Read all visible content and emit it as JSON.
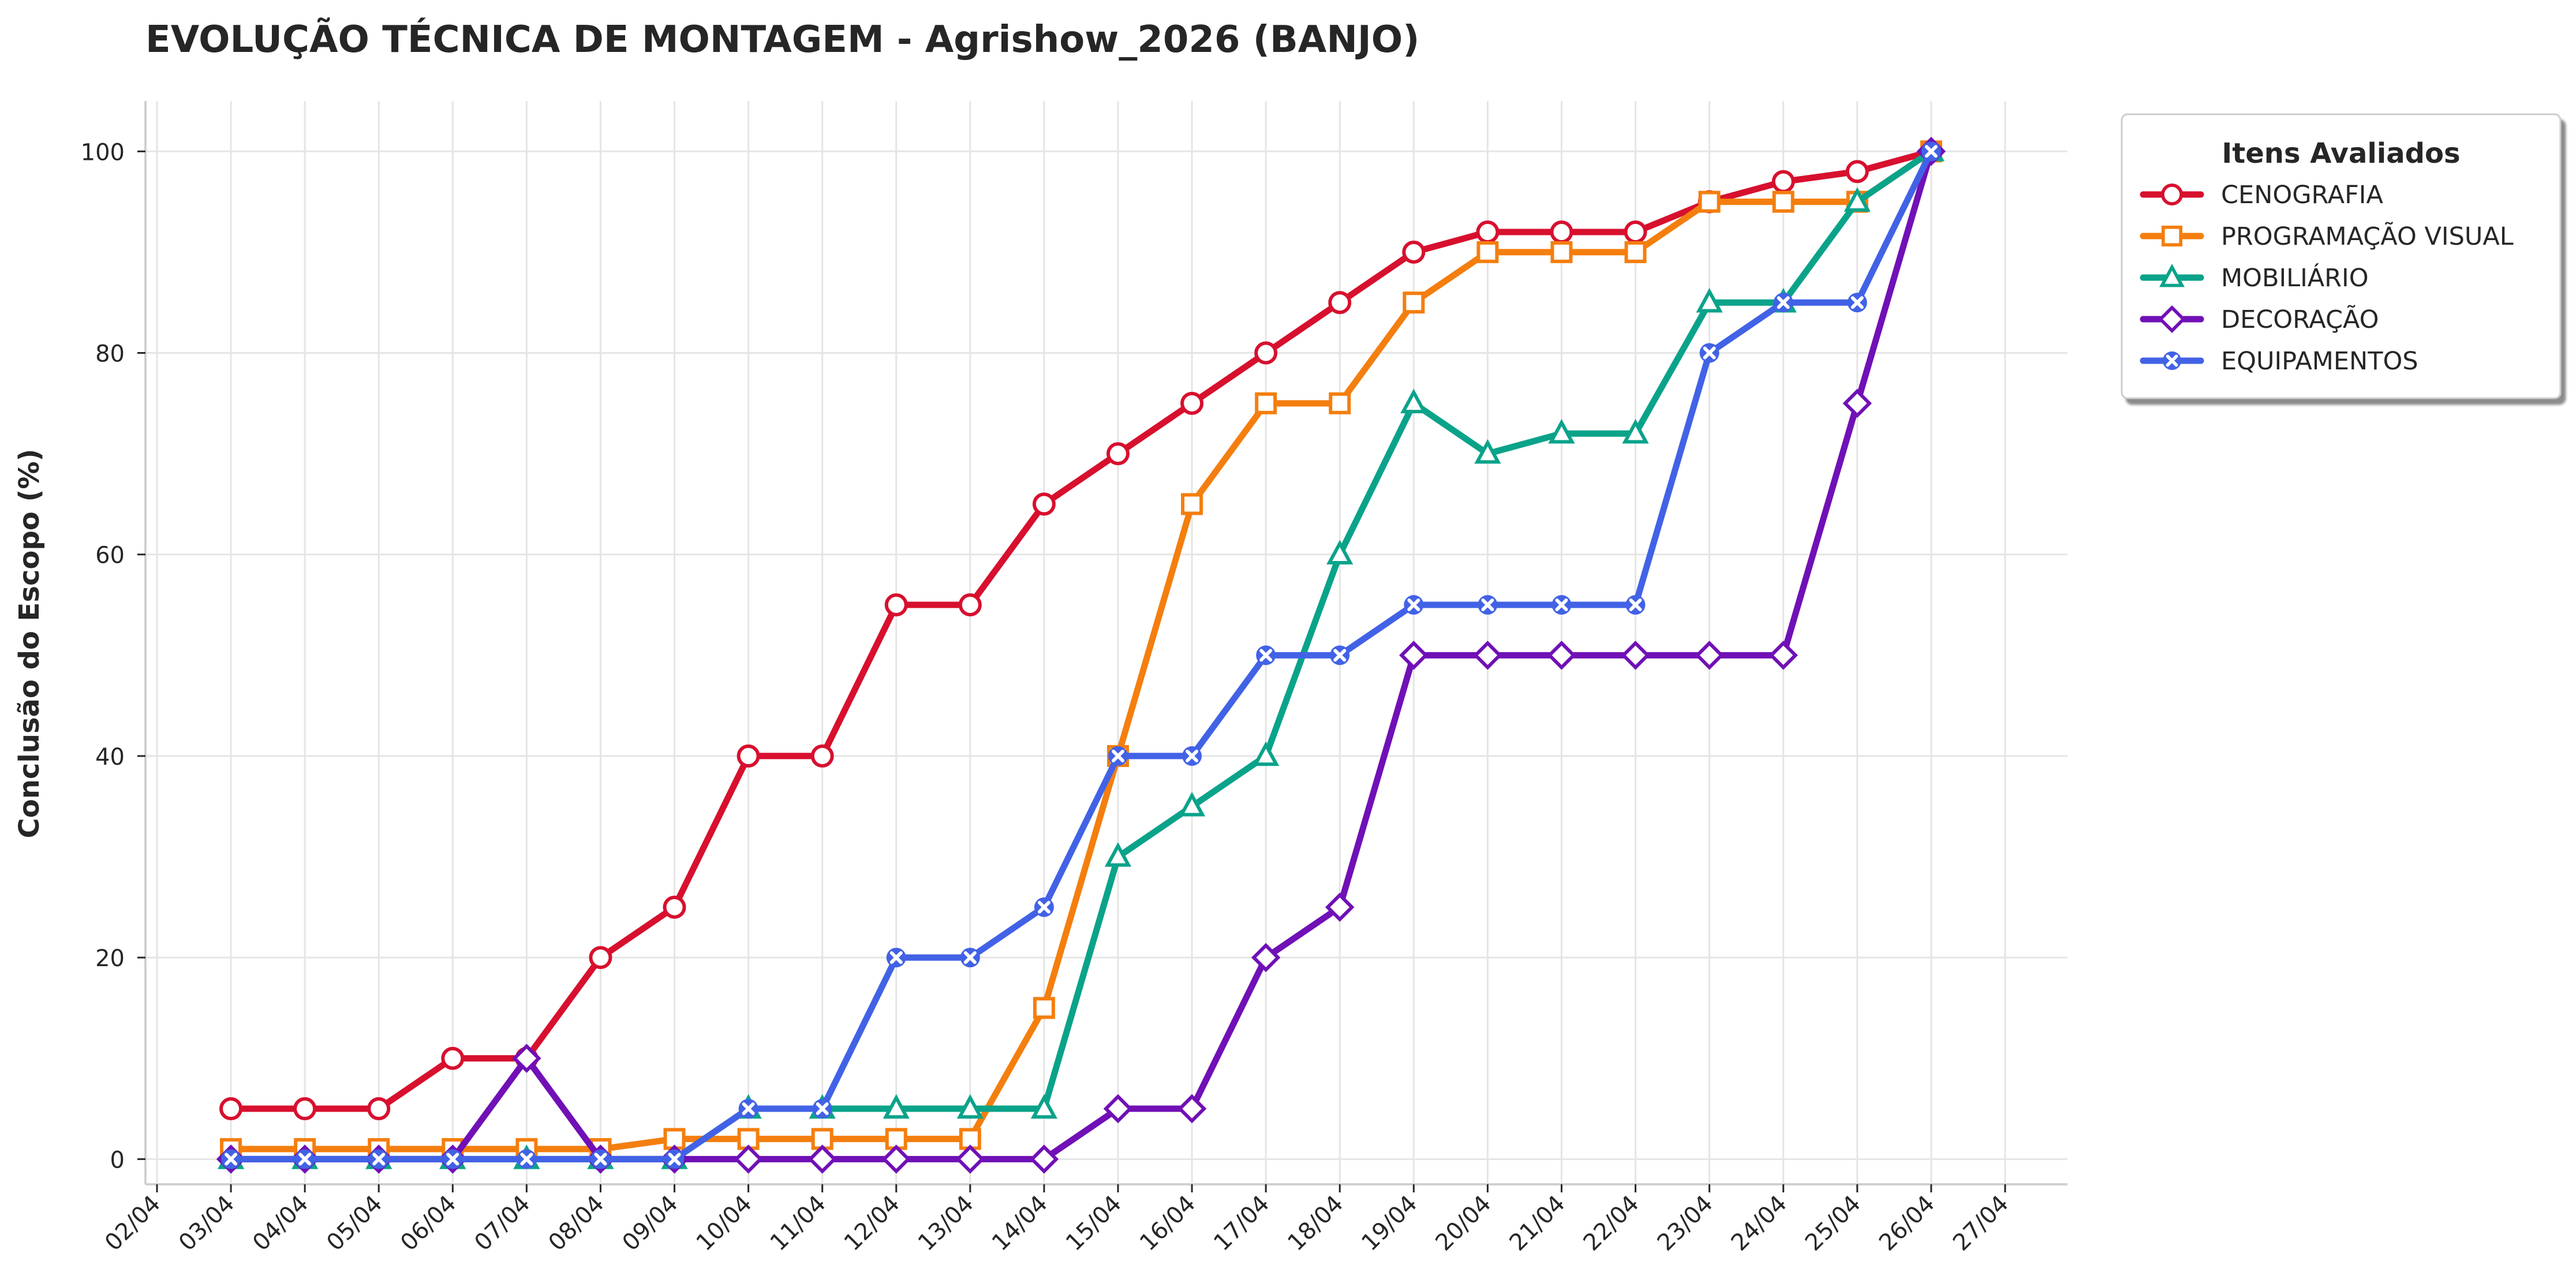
{
  "chart_data": {
    "type": "line",
    "title": "EVOLUÇÃO TÉCNICA DE MONTAGEM - Agrishow_2026 (BANJO)",
    "xlabel": "",
    "ylabel": "Conclusão do Escopo (%)",
    "x_ticks": [
      "02/04",
      "03/04",
      "04/04",
      "05/04",
      "06/04",
      "07/04",
      "08/04",
      "09/04",
      "10/04",
      "11/04",
      "12/04",
      "13/04",
      "14/04",
      "15/04",
      "16/04",
      "17/04",
      "18/04",
      "19/04",
      "20/04",
      "21/04",
      "22/04",
      "23/04",
      "24/04",
      "25/04",
      "26/04",
      "27/04"
    ],
    "x": [
      "03/04",
      "04/04",
      "05/04",
      "06/04",
      "07/04",
      "08/04",
      "09/04",
      "10/04",
      "11/04",
      "12/04",
      "13/04",
      "14/04",
      "15/04",
      "16/04",
      "17/04",
      "18/04",
      "19/04",
      "20/04",
      "21/04",
      "22/04",
      "23/04",
      "24/04",
      "25/04",
      "26/04"
    ],
    "y_ticks": [
      0,
      20,
      40,
      60,
      80,
      100
    ],
    "ylim": [
      -2.5,
      105
    ],
    "grid": true,
    "legend": {
      "title": "Itens Avaliados",
      "placement": "outside-top-right"
    },
    "series": [
      {
        "name": "CENOGRAFIA",
        "color": "#d7102e",
        "marker": "circle",
        "values": [
          5,
          5,
          5,
          10,
          10,
          20,
          25,
          40,
          40,
          55,
          55,
          65,
          70,
          75,
          80,
          85,
          90,
          92,
          92,
          92,
          95,
          97,
          98,
          100
        ]
      },
      {
        "name": "PROGRAMAÇÃO VISUAL",
        "color": "#f47e0e",
        "marker": "square",
        "values": [
          1,
          1,
          1,
          1,
          1,
          1,
          2,
          2,
          2,
          2,
          2,
          15,
          40,
          65,
          75,
          75,
          85,
          90,
          90,
          90,
          95,
          95,
          95,
          100
        ]
      },
      {
        "name": "MOBILIÁRIO",
        "color": "#0aa38a",
        "marker": "triangle",
        "values": [
          0,
          0,
          0,
          0,
          0,
          0,
          0,
          5,
          5,
          5,
          5,
          5,
          30,
          35,
          40,
          60,
          75,
          70,
          72,
          72,
          85,
          85,
          95,
          100
        ]
      },
      {
        "name": "DECORAÇÃO",
        "color": "#7010b6",
        "marker": "diamond",
        "values": [
          0,
          0,
          0,
          0,
          10,
          0,
          0,
          0,
          0,
          0,
          0,
          0,
          5,
          5,
          20,
          25,
          50,
          50,
          50,
          50,
          50,
          50,
          75,
          100
        ]
      },
      {
        "name": "EQUIPAMENTOS",
        "color": "#4262e6",
        "marker": "x-filled",
        "values": [
          0,
          0,
          0,
          0,
          0,
          0,
          0,
          5,
          5,
          20,
          20,
          25,
          40,
          40,
          50,
          50,
          55,
          55,
          55,
          55,
          80,
          85,
          85,
          100
        ]
      }
    ]
  }
}
